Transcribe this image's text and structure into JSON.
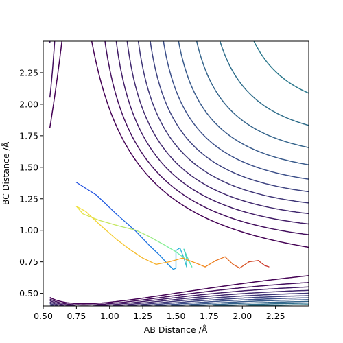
{
  "chart_data": {
    "type": "contour",
    "title": "",
    "xlabel": "AB Distance /Å",
    "ylabel": "BC Distance /Å",
    "xlim": [
      0.5,
      2.5
    ],
    "ylim": [
      0.4,
      2.5
    ],
    "xticks": [
      0.5,
      0.75,
      1.0,
      1.25,
      1.5,
      1.75,
      2.0,
      2.25
    ],
    "xtick_labels": [
      "0.50",
      "0.75",
      "1.00",
      "1.25",
      "1.50",
      "1.75",
      "2.00",
      "2.25"
    ],
    "yticks": [
      0.5,
      0.75,
      1.0,
      1.25,
      1.5,
      1.75,
      2.0,
      2.25
    ],
    "ytick_labels": [
      "0.50",
      "0.75",
      "1.00",
      "1.25",
      "1.50",
      "1.75",
      "2.00",
      "2.25"
    ],
    "grid": false,
    "legend": "none",
    "colormap": "viridis",
    "colormap_stops": [
      "#440154",
      "#3b528b",
      "#21918c",
      "#5ec962",
      "#fde725"
    ],
    "potential": {
      "model": "LEPS-like symmetric surface",
      "well_depth_exponent": 2.0,
      "equilibrium_distance": 0.74,
      "contour_levels": 26
    },
    "trajectory": {
      "colormap": "turbo-like",
      "color_stops": [
        "#1f4fe0",
        "#19a7e0",
        "#6bf0a6",
        "#f4e23a",
        "#f7941d",
        "#c8302a"
      ],
      "points": [
        [
          0.75,
          1.38
        ],
        [
          0.9,
          1.28
        ],
        [
          1.05,
          1.13
        ],
        [
          1.2,
          0.99
        ],
        [
          1.3,
          0.88
        ],
        [
          1.38,
          0.8
        ],
        [
          1.44,
          0.73
        ],
        [
          1.48,
          0.69
        ],
        [
          1.5,
          0.7
        ],
        [
          1.5,
          0.84
        ],
        [
          1.53,
          0.86
        ],
        [
          1.56,
          0.78
        ],
        [
          1.58,
          0.71
        ],
        [
          1.58,
          0.78
        ],
        [
          1.56,
          0.85
        ],
        [
          1.58,
          0.8
        ],
        [
          1.62,
          0.71
        ],
        [
          1.6,
          0.75
        ],
        [
          1.5,
          0.83
        ],
        [
          1.42,
          0.88
        ],
        [
          1.35,
          0.92
        ],
        [
          1.3,
          0.95
        ],
        [
          1.2,
          1.0
        ],
        [
          1.05,
          1.04
        ],
        [
          0.92,
          1.08
        ],
        [
          0.8,
          1.13
        ],
        [
          0.75,
          1.19
        ],
        [
          0.82,
          1.15
        ],
        [
          0.92,
          1.05
        ],
        [
          1.05,
          0.93
        ],
        [
          1.15,
          0.85
        ],
        [
          1.25,
          0.78
        ],
        [
          1.35,
          0.73
        ],
        [
          1.45,
          0.75
        ],
        [
          1.55,
          0.78
        ],
        [
          1.65,
          0.74
        ],
        [
          1.72,
          0.71
        ],
        [
          1.8,
          0.76
        ],
        [
          1.87,
          0.79
        ],
        [
          1.93,
          0.73
        ],
        [
          1.98,
          0.7
        ],
        [
          2.05,
          0.75
        ],
        [
          2.12,
          0.76
        ],
        [
          2.17,
          0.72
        ],
        [
          2.2,
          0.71
        ]
      ]
    }
  }
}
